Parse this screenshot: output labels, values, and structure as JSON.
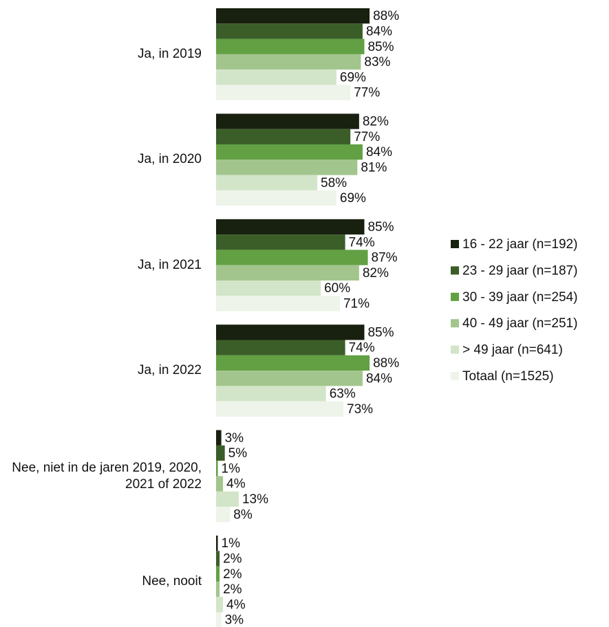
{
  "chart_data": {
    "type": "bar",
    "orientation": "horizontal",
    "categories": [
      "Ja, in 2019",
      "Ja, in 2020",
      "Ja, in 2021",
      "Ja, in 2022",
      "Nee, niet in de jaren 2019, 2020, 2021 of 2022",
      "Nee, nooit"
    ],
    "series": [
      {
        "name": "16 - 22 jaar (n=192)",
        "color": "#18200f",
        "values": [
          88,
          82,
          85,
          85,
          3,
          1
        ],
        "value_labels": [
          "88%",
          "82%",
          "85%",
          "85%",
          "3%",
          "1%"
        ]
      },
      {
        "name": "23 - 29 jaar (n=187)",
        "color": "#3b5e28",
        "values": [
          84,
          77,
          74,
          74,
          5,
          2
        ],
        "value_labels": [
          "84%",
          "77%",
          "74%",
          "74%",
          "5%",
          "2%"
        ]
      },
      {
        "name": "30 - 39 jaar (n=254)",
        "color": "#62a043",
        "values": [
          85,
          84,
          87,
          88,
          1,
          2
        ],
        "value_labels": [
          "85%",
          "84%",
          "87%",
          "88%",
          "1%",
          "2%"
        ]
      },
      {
        "name": "40 - 49 jaar (n=251)",
        "color": "#a2c58d",
        "values": [
          83,
          81,
          82,
          84,
          4,
          2
        ],
        "value_labels": [
          "83%",
          "81%",
          "82%",
          "84%",
          "4%",
          "2%"
        ]
      },
      {
        "name": "> 49 jaar (n=641)",
        "color": "#d3e5c8",
        "values": [
          69,
          58,
          60,
          63,
          13,
          4
        ],
        "value_labels": [
          "69%",
          "58%",
          "60%",
          "63%",
          "13%",
          "4%"
        ]
      },
      {
        "name": "Totaal (n=1525)",
        "color": "#eef4ea",
        "values": [
          77,
          69,
          71,
          73,
          8,
          3
        ],
        "value_labels": [
          "77%",
          "69%",
          "71%",
          "73%",
          "8%",
          "3%"
        ]
      }
    ],
    "legend": "right"
  }
}
